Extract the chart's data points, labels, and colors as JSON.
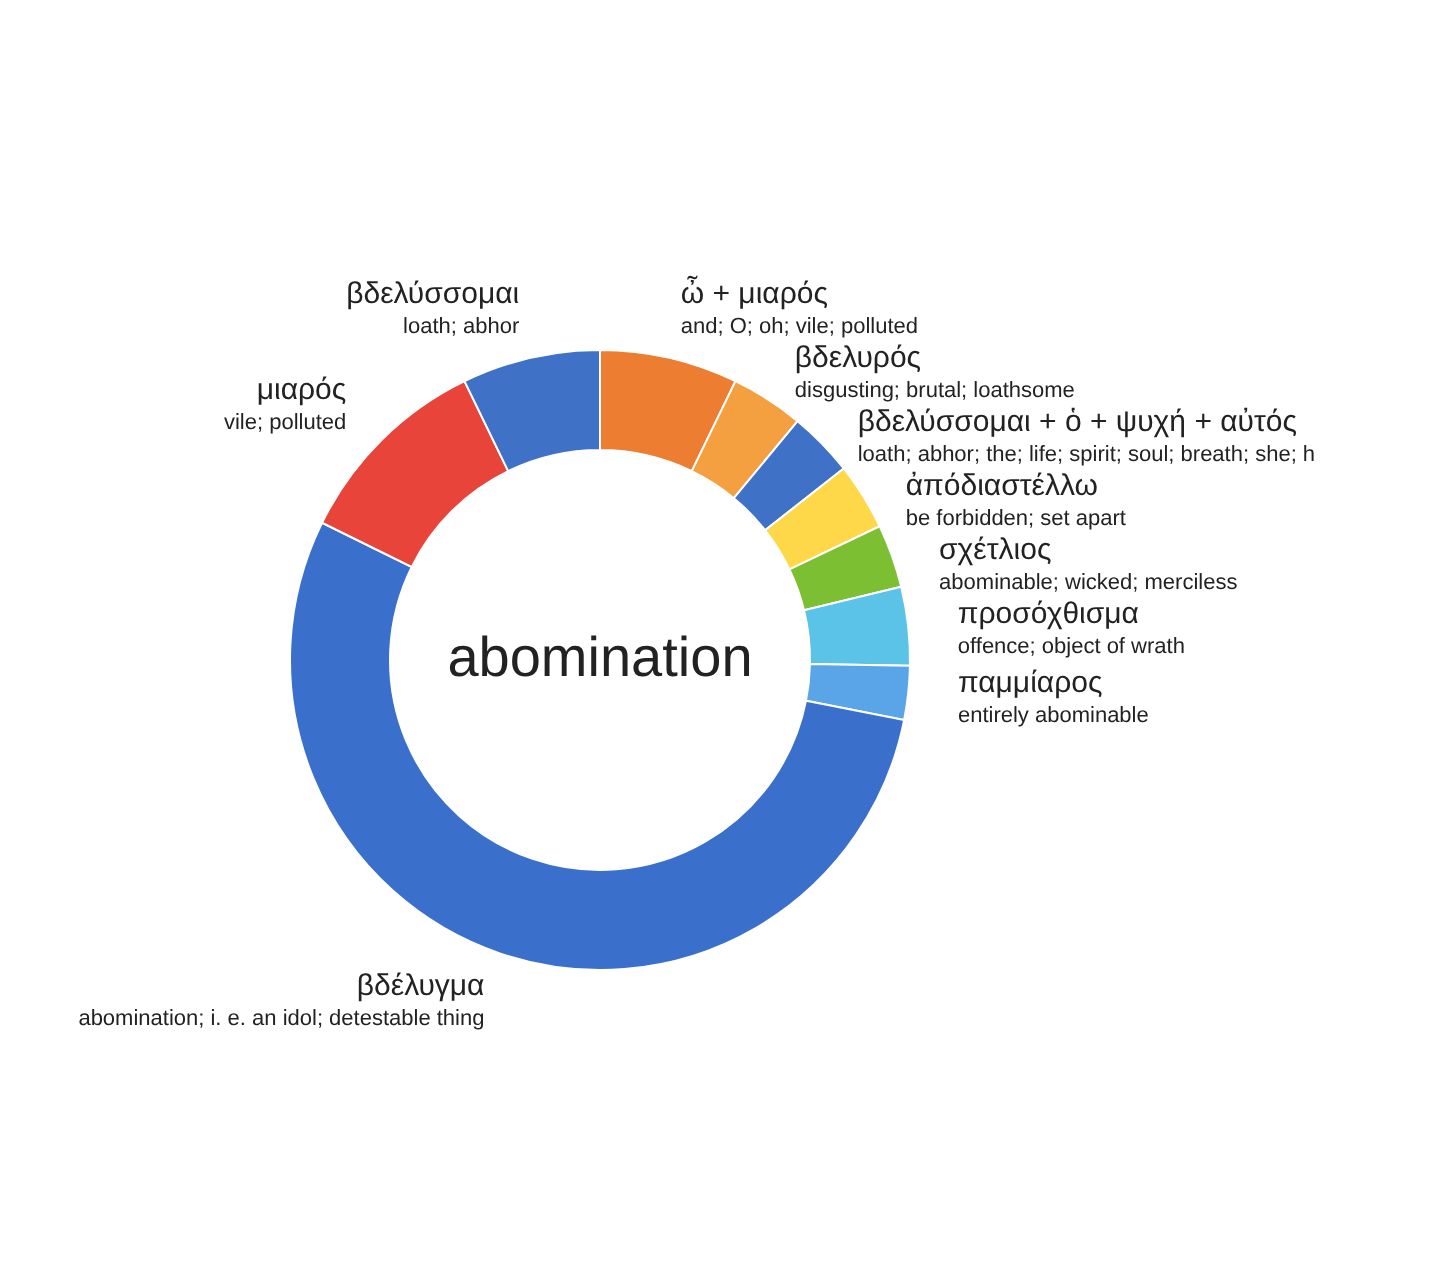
{
  "chart_data": {
    "type": "donut",
    "title": "abomination",
    "categories": [
      "ὦ + μιαρός",
      "βδελυρός",
      "βδελύσσομαι + ὁ + ψυχή + αὐτός",
      "ἀπόδιαστέλλω",
      "σχέτλιος",
      "προσόχθισμα",
      "παμμίαρος",
      "βδέλυγμα",
      "μιαρός",
      "βδελύσσομαι"
    ],
    "values": [
      7.2,
      3.8,
      3.4,
      3.5,
      3.3,
      4.1,
      2.8,
      54.2,
      10.5,
      7.2
    ],
    "colors": [
      "#ed7d31",
      "#f4a040",
      "#3f72c7",
      "#ffd84a",
      "#7cbf33",
      "#5bc3e8",
      "#5aa5e8",
      "#3a70cc",
      "#e8443a",
      "#3f72c7"
    ],
    "annotations": [
      "and; O; oh; vile; polluted",
      "disgusting; brutal; loathsome",
      "loath; abhor; the; life; spirit; soul; breath; she; h",
      "be forbidden; set apart",
      "abominable; wicked; merciless",
      "offence; object of wrath",
      "entirely abominable",
      "abomination; i. e. an idol; detestable thing",
      "vile; polluted",
      "loath; abhor"
    ]
  }
}
